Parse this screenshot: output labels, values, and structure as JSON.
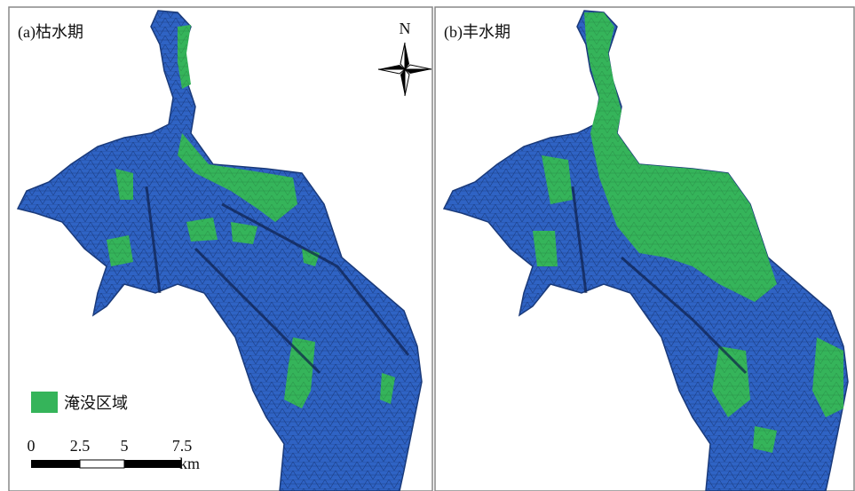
{
  "panels": [
    {
      "label": "(a)枯水期"
    },
    {
      "label": "(b)丰水期"
    }
  ],
  "north_arrow": "N",
  "legend": {
    "label": "淹没区域"
  },
  "scale_bar": {
    "ticks": [
      "0",
      "2.5",
      "5",
      "7.5"
    ],
    "unit": "km"
  }
}
